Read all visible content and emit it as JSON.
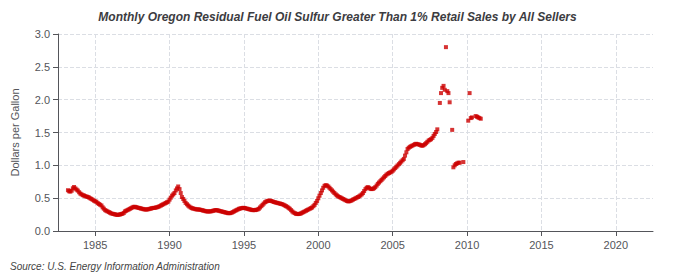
{
  "chart_data": {
    "type": "scatter",
    "title": "Monthly Oregon Residual Fuel Oil Sulfur Greater Than 1% Retail Sales by All Sellers",
    "ylabel": "Dollars per Gallon",
    "annotation": "Source: U.S. Energy Information Administration",
    "color": "#cc0000",
    "marker": "square",
    "grid": true,
    "xlim": [
      1982.5,
      2022.5
    ],
    "xticks": [
      1985,
      1990,
      1995,
      2000,
      2005,
      2010,
      2015,
      2020
    ],
    "ylim": [
      0.0,
      3.0
    ],
    "yticks": [
      {
        "value": 0.0,
        "label": "0.0"
      },
      0.5,
      {
        "value": 1.0,
        "label": "1.0"
      },
      1.5,
      {
        "value": 2.0,
        "label": "2.0"
      },
      2.5,
      {
        "value": 3.0,
        "label": "3.0"
      }
    ],
    "x": [
      1983.17,
      1983.25,
      1983.33,
      1983.42,
      1983.5,
      1983.58,
      1983.67,
      1983.75,
      1983.83,
      1983.92,
      1984.0,
      1984.08,
      1984.17,
      1984.25,
      1984.33,
      1984.42,
      1984.5,
      1984.58,
      1984.67,
      1984.75,
      1984.83,
      1984.92,
      1985.0,
      1985.08,
      1985.17,
      1985.25,
      1985.33,
      1985.42,
      1985.5,
      1985.58,
      1985.67,
      1985.75,
      1985.83,
      1985.92,
      1986.0,
      1986.08,
      1986.17,
      1986.25,
      1986.33,
      1986.42,
      1986.5,
      1986.58,
      1986.67,
      1986.75,
      1986.83,
      1986.92,
      1987.0,
      1987.08,
      1987.17,
      1987.25,
      1987.33,
      1987.42,
      1987.5,
      1987.58,
      1987.67,
      1987.75,
      1987.83,
      1987.92,
      1988.0,
      1988.08,
      1988.17,
      1988.25,
      1988.33,
      1988.42,
      1988.5,
      1988.58,
      1988.67,
      1988.75,
      1988.83,
      1988.92,
      1989.0,
      1989.08,
      1989.17,
      1989.25,
      1989.33,
      1989.42,
      1989.5,
      1989.58,
      1989.67,
      1989.75,
      1989.83,
      1989.92,
      1990.0,
      1990.08,
      1990.17,
      1990.25,
      1990.33,
      1990.42,
      1990.5,
      1990.58,
      1990.67,
      1990.75,
      1990.83,
      1990.92,
      1991.0,
      1991.08,
      1991.17,
      1991.25,
      1991.33,
      1991.42,
      1991.5,
      1991.58,
      1991.67,
      1991.75,
      1991.83,
      1991.92,
      1992.0,
      1992.08,
      1992.17,
      1992.25,
      1992.33,
      1992.42,
      1992.5,
      1992.58,
      1992.67,
      1992.75,
      1992.83,
      1992.92,
      1993.0,
      1993.08,
      1993.17,
      1993.25,
      1993.33,
      1993.42,
      1993.5,
      1993.58,
      1993.67,
      1993.75,
      1993.83,
      1993.92,
      1994.0,
      1994.08,
      1994.17,
      1994.25,
      1994.33,
      1994.42,
      1994.5,
      1994.58,
      1994.67,
      1994.75,
      1994.83,
      1994.92,
      1995.0,
      1995.08,
      1995.17,
      1995.25,
      1995.33,
      1995.42,
      1995.5,
      1995.58,
      1995.67,
      1995.75,
      1995.83,
      1995.92,
      1996.0,
      1996.08,
      1996.17,
      1996.25,
      1996.33,
      1996.42,
      1996.5,
      1996.58,
      1996.67,
      1996.75,
      1996.83,
      1996.92,
      1997.0,
      1997.08,
      1997.17,
      1997.25,
      1997.33,
      1997.42,
      1997.5,
      1997.58,
      1997.67,
      1997.75,
      1997.83,
      1997.92,
      1998.0,
      1998.08,
      1998.17,
      1998.25,
      1998.33,
      1998.42,
      1998.5,
      1998.58,
      1998.67,
      1998.75,
      1998.83,
      1998.92,
      1999.0,
      1999.08,
      1999.17,
      1999.25,
      1999.33,
      1999.42,
      1999.5,
      1999.58,
      1999.67,
      1999.75,
      1999.83,
      1999.92,
      2000.0,
      2000.08,
      2000.17,
      2000.25,
      2000.33,
      2000.42,
      2000.5,
      2000.58,
      2000.67,
      2000.75,
      2000.83,
      2000.92,
      2001.0,
      2001.08,
      2001.17,
      2001.25,
      2001.33,
      2001.42,
      2001.5,
      2001.58,
      2001.67,
      2001.75,
      2001.83,
      2001.92,
      2002.0,
      2002.08,
      2002.17,
      2002.25,
      2002.33,
      2002.42,
      2002.5,
      2002.58,
      2002.67,
      2002.75,
      2002.83,
      2002.92,
      2003.0,
      2003.08,
      2003.17,
      2003.25,
      2003.33,
      2003.42,
      2003.5,
      2003.58,
      2003.67,
      2003.75,
      2003.83,
      2003.92,
      2004.0,
      2004.08,
      2004.17,
      2004.25,
      2004.33,
      2004.42,
      2004.5,
      2004.58,
      2004.67,
      2004.75,
      2004.83,
      2004.92,
      2005.0,
      2005.08,
      2005.17,
      2005.25,
      2005.33,
      2005.42,
      2005.5,
      2005.58,
      2005.67,
      2005.75,
      2005.83,
      2005.92,
      2006.0,
      2006.08,
      2006.17,
      2006.25,
      2006.33,
      2006.42,
      2006.5,
      2006.58,
      2006.67,
      2006.75,
      2006.83,
      2006.92,
      2007.0,
      2007.08,
      2007.17,
      2007.25,
      2007.33,
      2007.42,
      2007.5,
      2007.58,
      2007.67,
      2007.75,
      2007.83,
      2007.92,
      2008.0,
      2008.17,
      2008.25,
      2008.33,
      2008.42,
      2008.5,
      2008.58,
      2008.67,
      2008.75,
      2008.83,
      2009.0,
      2009.08,
      2009.17,
      2009.25,
      2009.33,
      2009.42,
      2009.5,
      2009.75,
      2010.08,
      2010.17,
      2010.25,
      2010.33,
      2010.58,
      2010.67,
      2010.75,
      2010.83,
      2010.92
    ],
    "values": [
      0.621,
      0.605,
      0.6,
      0.614,
      0.65,
      0.67,
      0.648,
      0.63,
      0.615,
      0.59,
      0.57,
      0.558,
      0.545,
      0.54,
      0.53,
      0.525,
      0.518,
      0.51,
      0.498,
      0.488,
      0.475,
      0.462,
      0.452,
      0.445,
      0.425,
      0.412,
      0.4,
      0.388,
      0.36,
      0.34,
      0.318,
      0.308,
      0.298,
      0.288,
      0.278,
      0.268,
      0.262,
      0.258,
      0.253,
      0.248,
      0.245,
      0.248,
      0.252,
      0.258,
      0.262,
      0.275,
      0.298,
      0.308,
      0.318,
      0.328,
      0.338,
      0.348,
      0.358,
      0.368,
      0.368,
      0.362,
      0.358,
      0.352,
      0.348,
      0.342,
      0.338,
      0.332,
      0.328,
      0.328,
      0.328,
      0.332,
      0.338,
      0.342,
      0.348,
      0.352,
      0.352,
      0.358,
      0.362,
      0.368,
      0.378,
      0.388,
      0.398,
      0.408,
      0.418,
      0.428,
      0.438,
      0.448,
      0.478,
      0.508,
      0.538,
      0.558,
      0.578,
      0.618,
      0.648,
      0.678,
      0.638,
      0.578,
      0.518,
      0.488,
      0.458,
      0.428,
      0.408,
      0.388,
      0.372,
      0.358,
      0.348,
      0.342,
      0.338,
      0.332,
      0.328,
      0.328,
      0.328,
      0.322,
      0.318,
      0.312,
      0.308,
      0.302,
      0.298,
      0.298,
      0.298,
      0.298,
      0.302,
      0.308,
      0.312,
      0.318,
      0.318,
      0.312,
      0.308,
      0.302,
      0.298,
      0.292,
      0.288,
      0.282,
      0.278,
      0.272,
      0.272,
      0.272,
      0.278,
      0.288,
      0.298,
      0.308,
      0.318,
      0.328,
      0.338,
      0.342,
      0.348,
      0.352,
      0.352,
      0.348,
      0.342,
      0.338,
      0.332,
      0.328,
      0.322,
      0.318,
      0.318,
      0.318,
      0.322,
      0.328,
      0.338,
      0.358,
      0.378,
      0.398,
      0.418,
      0.438,
      0.448,
      0.458,
      0.462,
      0.462,
      0.458,
      0.452,
      0.442,
      0.438,
      0.432,
      0.428,
      0.422,
      0.418,
      0.412,
      0.408,
      0.398,
      0.388,
      0.378,
      0.368,
      0.352,
      0.338,
      0.318,
      0.298,
      0.282,
      0.272,
      0.262,
      0.258,
      0.258,
      0.262,
      0.268,
      0.278,
      0.288,
      0.298,
      0.308,
      0.318,
      0.328,
      0.338,
      0.348,
      0.358,
      0.378,
      0.398,
      0.428,
      0.458,
      0.498,
      0.538,
      0.578,
      0.618,
      0.658,
      0.688,
      0.698,
      0.692,
      0.678,
      0.658,
      0.638,
      0.618,
      0.598,
      0.578,
      0.558,
      0.542,
      0.528,
      0.518,
      0.508,
      0.498,
      0.488,
      0.478,
      0.468,
      0.458,
      0.452,
      0.452,
      0.458,
      0.468,
      0.478,
      0.488,
      0.498,
      0.508,
      0.518,
      0.528,
      0.542,
      0.558,
      0.578,
      0.608,
      0.638,
      0.658,
      0.668,
      0.658,
      0.642,
      0.638,
      0.642,
      0.652,
      0.668,
      0.692,
      0.718,
      0.738,
      0.758,
      0.778,
      0.798,
      0.818,
      0.838,
      0.858,
      0.872,
      0.882,
      0.892,
      0.902,
      0.918,
      0.938,
      0.958,
      0.978,
      0.998,
      1.018,
      1.038,
      1.058,
      1.078,
      1.098,
      1.148,
      1.198,
      1.248,
      1.268,
      1.282,
      1.292,
      1.302,
      1.312,
      1.322,
      1.328,
      1.322,
      1.318,
      1.312,
      1.302,
      1.298,
      1.308,
      1.322,
      1.338,
      1.358,
      1.378,
      1.388,
      1.398,
      1.418,
      1.448,
      1.478,
      1.508,
      1.548,
      1.95,
      2.1,
      2.18,
      2.21,
      2.15,
      2.8,
      2.13,
      2.1,
      1.96,
      1.54,
      0.97,
      1.0,
      1.02,
      1.03,
      1.04,
      1.04,
      1.05,
      1.68,
      2.1,
      1.72,
      1.73,
      1.75,
      1.74,
      1.73,
      1.72,
      1.71
    ]
  }
}
